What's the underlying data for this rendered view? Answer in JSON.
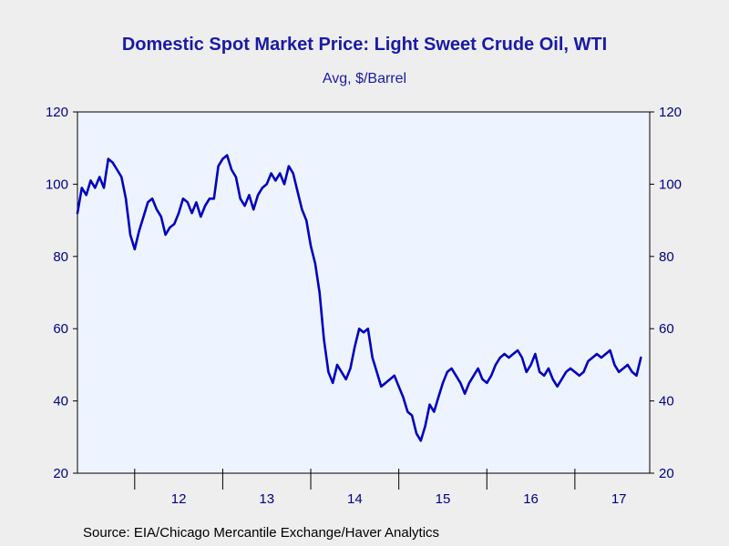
{
  "chart_data": {
    "type": "line",
    "title": "Domestic Spot Market Price: Light Sweet Crude Oil, WTI",
    "subtitle": "Avg, $/Barrel",
    "xlabel": "",
    "ylabel": "",
    "ylim": [
      20,
      120
    ],
    "y_ticks": [
      "20",
      "40",
      "60",
      "80",
      "100",
      "120"
    ],
    "x_tick_labels": [
      "12",
      "13",
      "14",
      "15",
      "16",
      "17"
    ],
    "grid": false,
    "line_color": "#0000c0",
    "plot_background": "#eef4ff",
    "series": [
      {
        "x": [
          2011.35,
          2011.4,
          2011.45,
          2011.5,
          2011.55,
          2011.6,
          2011.65,
          2011.7,
          2011.75,
          2011.8,
          2011.85,
          2011.9,
          2011.95,
          2012.0,
          2012.05,
          2012.1,
          2012.15,
          2012.2,
          2012.25,
          2012.3,
          2012.35,
          2012.4,
          2012.45,
          2012.5,
          2012.55,
          2012.6,
          2012.65,
          2012.7,
          2012.75,
          2012.8,
          2012.85,
          2012.9,
          2012.95,
          2013.0,
          2013.05,
          2013.1,
          2013.15,
          2013.2,
          2013.25,
          2013.3,
          2013.35,
          2013.4,
          2013.45,
          2013.5,
          2013.55,
          2013.6,
          2013.65,
          2013.7,
          2013.75,
          2013.8,
          2013.85,
          2013.9,
          2013.95,
          2014.0,
          2014.05,
          2014.1,
          2014.15,
          2014.2,
          2014.25,
          2014.3,
          2014.35,
          2014.4,
          2014.45,
          2014.5,
          2014.55,
          2014.6,
          2014.65,
          2014.7,
          2014.75,
          2014.8,
          2014.85,
          2014.9,
          2014.95,
          2015.0,
          2015.05,
          2015.1,
          2015.15,
          2015.2,
          2015.25,
          2015.3,
          2015.35,
          2015.4,
          2015.45,
          2015.5,
          2015.55,
          2015.6,
          2015.65,
          2015.7,
          2015.75,
          2015.8,
          2015.85,
          2015.9,
          2015.95,
          2016.0,
          2016.05,
          2016.1,
          2016.15,
          2016.2,
          2016.25,
          2016.3,
          2016.35,
          2016.4,
          2016.45,
          2016.5,
          2016.55,
          2016.6,
          2016.65,
          2016.7,
          2016.75,
          2016.8,
          2016.85,
          2016.9,
          2016.95,
          2017.0,
          2017.05,
          2017.1,
          2017.15,
          2017.2,
          2017.25,
          2017.3,
          2017.35,
          2017.4,
          2017.45,
          2017.5,
          2017.55,
          2017.6,
          2017.65,
          2017.7,
          2017.75
        ],
        "values": [
          92,
          99,
          97,
          101,
          99,
          102,
          99,
          107,
          106,
          104,
          102,
          96,
          86,
          82,
          87,
          91,
          95,
          96,
          93,
          91,
          86,
          88,
          89,
          92,
          96,
          95,
          92,
          95,
          91,
          94,
          96,
          96,
          105,
          107,
          108,
          104,
          102,
          96,
          94,
          97,
          93,
          97,
          99,
          100,
          103,
          101,
          103,
          100,
          105,
          103,
          98,
          93,
          90,
          83,
          78,
          70,
          57,
          48,
          45,
          50,
          48,
          46,
          49,
          55,
          60,
          59,
          60,
          52,
          48,
          44,
          45,
          46,
          47,
          44,
          41,
          37,
          36,
          31,
          29,
          33,
          39,
          37,
          41,
          45,
          48,
          49,
          47,
          45,
          42,
          45,
          47,
          49,
          46,
          45,
          47,
          50,
          52,
          53,
          52,
          53,
          54,
          52,
          48,
          50,
          53,
          48,
          47,
          49,
          46,
          44,
          46,
          48,
          49,
          48,
          47,
          48,
          51,
          52,
          53,
          52,
          53,
          54,
          50,
          48,
          49,
          50,
          48,
          47,
          52
        ]
      }
    ],
    "source": "Source:  EIA/Chicago Mercantile Exchange/Haver Analytics"
  }
}
